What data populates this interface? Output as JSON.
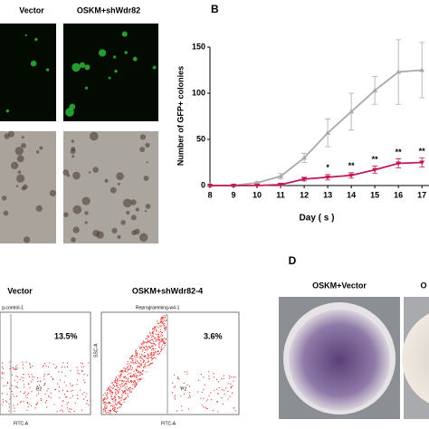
{
  "panels": {
    "a": {
      "col1": "Vector",
      "col2": "OSKM+shWdr82"
    },
    "c": {
      "col1": "Vector",
      "col2": "OSKM+shWdr82-4",
      "plot1_title": "g-control-1",
      "plot2_title": "Reprogramming-w4-1",
      "pct1": "13.5%",
      "pct2": "3.6%",
      "gate1": "P2",
      "gate2": "P2",
      "xlabel1": "FITC-A",
      "xlabel2": "FITC-A",
      "ylabel2": "SSC-A"
    },
    "d": {
      "label": "D",
      "col1": "OSKM+Vector",
      "col2": "O"
    }
  },
  "chart_data": {
    "type": "line",
    "panel_label": "B",
    "x_label": "Day ( s )",
    "y_label": "Number of GFP+ colonies",
    "x": [
      8,
      9,
      10,
      11,
      12,
      13,
      14,
      15,
      16,
      17
    ],
    "series": [
      {
        "color": "#a9a9a9",
        "values": [
          0,
          0,
          3,
          10,
          30,
          57,
          80,
          103,
          123,
          125
        ],
        "errors": [
          0,
          0,
          1,
          3,
          5,
          15,
          20,
          15,
          35,
          30
        ]
      },
      {
        "color": "#c2185b",
        "values": [
          0,
          0,
          0,
          1,
          7,
          9,
          11,
          17,
          24,
          25
        ],
        "errors": [
          0,
          0,
          0,
          1,
          2,
          3,
          3,
          4,
          5,
          5
        ]
      }
    ],
    "annotations": [
      {
        "text": "*",
        "x": 13
      },
      {
        "text": "**",
        "x": 14
      },
      {
        "text": "**",
        "x": 15
      },
      {
        "text": "**",
        "x": 16
      },
      {
        "text": "**",
        "x": 17
      }
    ],
    "xlim": [
      8,
      17.3
    ],
    "ylim": [
      0,
      150
    ],
    "xticks": [
      8,
      9,
      10,
      11,
      12,
      13,
      14,
      15,
      16,
      17
    ],
    "yticks": [
      0,
      50,
      100,
      150
    ]
  }
}
